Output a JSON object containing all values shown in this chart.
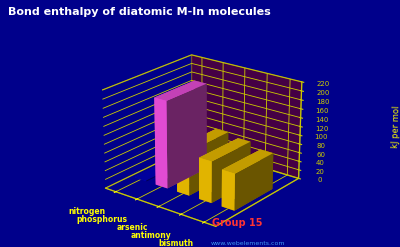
{
  "title": "Bond enthalpy of diatomic M-In molecules",
  "elements": [
    "nitrogen",
    "phosphorus",
    "arsenic",
    "antimony",
    "bismuth"
  ],
  "group_label": "Group 15",
  "ylabel": "kJ per mol",
  "values": [
    2,
    197,
    100,
    93,
    82
  ],
  "bar_colors": [
    "#0000cc",
    "#ff55ee",
    "#ffcc00",
    "#ffcc00",
    "#ffcc00"
  ],
  "background_color": "#00008B",
  "title_color": "white",
  "axis_color": "#cccc00",
  "label_color": "#ffff00",
  "ylim": [
    0,
    220
  ],
  "yticks": [
    0,
    20,
    40,
    60,
    80,
    100,
    120,
    140,
    160,
    180,
    200,
    220
  ],
  "website": "www.webelements.com",
  "floor_color": "#8B0000",
  "grid_color": "#cccc00",
  "elev": 22,
  "azim": -52
}
